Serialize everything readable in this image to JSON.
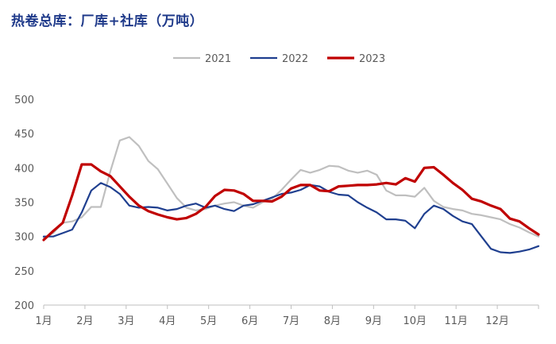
{
  "chart_data": {
    "type": "line",
    "title": "热卷总库：厂库+社库（万吨）",
    "xlabel": "",
    "ylabel": "",
    "ylim": [
      200,
      500
    ],
    "yticks": [
      200,
      250,
      300,
      350,
      400,
      450,
      500
    ],
    "x_tick_labels": [
      "1月",
      "2月",
      "3月",
      "4月",
      "5月",
      "6月",
      "7月",
      "8月",
      "9月",
      "10月",
      "11月",
      "12月"
    ],
    "x_unit": "week",
    "xlim": [
      1,
      53
    ],
    "legend_position": "top-center",
    "series": [
      {
        "name": "2021",
        "color": "#bfbfbf",
        "x": [
          1,
          2,
          3,
          4,
          5,
          6,
          7,
          8,
          9,
          10,
          11,
          12,
          13,
          14,
          15,
          16,
          17,
          18,
          19,
          20,
          21,
          22,
          23,
          24,
          25,
          26,
          27,
          28,
          29,
          30,
          31,
          32,
          33,
          34,
          35,
          36,
          37,
          38,
          39,
          40,
          41,
          42,
          43,
          44,
          45,
          46,
          47,
          48,
          49,
          50,
          51,
          52,
          53
        ],
        "values": [
          298,
          305,
          320,
          322,
          328,
          343,
          343,
          395,
          440,
          445,
          432,
          410,
          398,
          377,
          356,
          342,
          338,
          340,
          345,
          348,
          350,
          345,
          342,
          350,
          355,
          368,
          383,
          397,
          393,
          397,
          403,
          402,
          396,
          393,
          396,
          390,
          367,
          360,
          360,
          358,
          371,
          352,
          343,
          340,
          338,
          333,
          331,
          328,
          325,
          318,
          313,
          306,
          300
        ]
      },
      {
        "name": "2022",
        "color": "#1f3f8f",
        "x": [
          1,
          2,
          3,
          4,
          5,
          6,
          7,
          8,
          9,
          10,
          11,
          12,
          13,
          14,
          15,
          16,
          17,
          18,
          19,
          20,
          21,
          22,
          23,
          24,
          25,
          26,
          27,
          28,
          29,
          30,
          31,
          32,
          33,
          34,
          35,
          36,
          37,
          38,
          39,
          40,
          41,
          42,
          43,
          44,
          45,
          46,
          47,
          48,
          49,
          50,
          51,
          52,
          53
        ],
        "values": [
          300,
          300,
          305,
          310,
          335,
          367,
          378,
          372,
          362,
          345,
          342,
          343,
          342,
          338,
          340,
          345,
          348,
          342,
          345,
          340,
          337,
          345,
          347,
          352,
          357,
          362,
          364,
          368,
          375,
          373,
          365,
          361,
          360,
          350,
          342,
          335,
          325,
          325,
          323,
          312,
          333,
          345,
          340,
          330,
          322,
          318,
          300,
          282,
          277,
          276,
          278,
          281,
          286
        ]
      },
      {
        "name": "2023",
        "color": "#c00000",
        "x": [
          1,
          2,
          3,
          4,
          5,
          6,
          7,
          8,
          9,
          10,
          11,
          12,
          13,
          14,
          15,
          16,
          17,
          18,
          19,
          20,
          21,
          22,
          23,
          24,
          25,
          26,
          27,
          28,
          29,
          30,
          31,
          32,
          33,
          34,
          35,
          36,
          37,
          38,
          39,
          40,
          41,
          42,
          43,
          44,
          45,
          46,
          47,
          48,
          49,
          50,
          51,
          52,
          53
        ],
        "values": [
          295,
          308,
          320,
          360,
          405,
          405,
          395,
          388,
          373,
          358,
          345,
          337,
          332,
          328,
          325,
          327,
          333,
          343,
          359,
          368,
          367,
          362,
          352,
          352,
          351,
          358,
          370,
          375,
          375,
          367,
          366,
          373,
          374,
          375,
          375,
          376,
          378,
          376,
          385,
          380,
          400,
          401,
          390,
          378,
          368,
          355,
          351,
          345,
          340,
          326,
          322,
          312,
          303
        ]
      }
    ]
  }
}
